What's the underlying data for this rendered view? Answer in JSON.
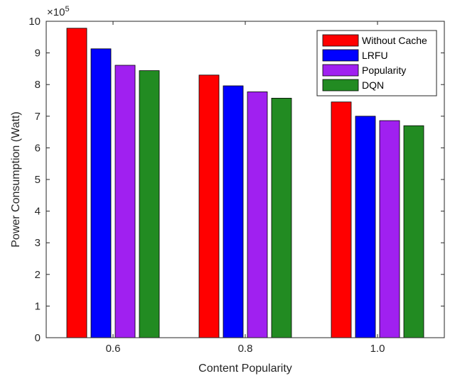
{
  "chart_data": {
    "type": "bar",
    "categories": [
      "0.6",
      "0.8",
      "1.0"
    ],
    "series": [
      {
        "name": "Without Cache",
        "color": "#ff0000",
        "values": [
          9.78,
          8.3,
          7.45
        ]
      },
      {
        "name": "LRFU",
        "color": "#0000ff",
        "values": [
          9.13,
          7.96,
          7.0
        ]
      },
      {
        "name": "Popularity",
        "color": "#a020f0",
        "values": [
          8.61,
          7.77,
          6.86
        ]
      },
      {
        "name": "DQN",
        "color": "#228b22",
        "values": [
          8.44,
          7.57,
          6.7
        ]
      }
    ],
    "xlabel": "Content Popularity",
    "ylabel": "Power Consumption (Watt)",
    "ylim": [
      0,
      10
    ],
    "yticks": [
      "0",
      "1",
      "2",
      "3",
      "4",
      "5",
      "6",
      "7",
      "8",
      "9",
      "10"
    ],
    "y_exponent_base": "×10",
    "y_exponent_power": "5",
    "legend_position": "top-right",
    "grid": false
  }
}
